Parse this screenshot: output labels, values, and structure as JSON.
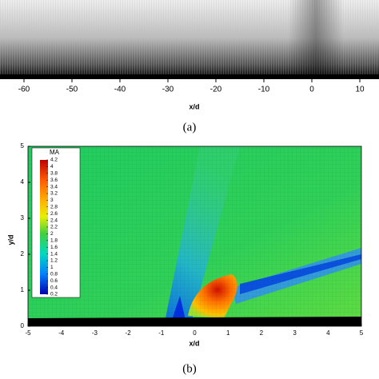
{
  "chart_data": [
    {
      "type": "mesh",
      "caption": "(a)",
      "xlabel": "x/d",
      "xlim": [
        -65,
        14
      ],
      "xticks": [
        -60,
        -50,
        -40,
        -30,
        -20,
        -10,
        0,
        10
      ]
    },
    {
      "type": "contour",
      "caption": "(b)",
      "xlabel": "x/d",
      "ylabel": "y/d",
      "xlim": [
        -5,
        5
      ],
      "xticks": [
        -5,
        -4,
        -3,
        -2,
        -1,
        0,
        1,
        2,
        3,
        4,
        5
      ],
      "ylim": [
        0,
        5
      ],
      "yticks": [
        0,
        1,
        2,
        3,
        4,
        5
      ],
      "colorbar": {
        "title": "MA",
        "lim": [
          0.2,
          4.2
        ],
        "ticks": [
          4.2,
          4,
          3.8,
          3.6,
          3.4,
          3.2,
          3,
          2.8,
          2.6,
          2.4,
          2.2,
          2,
          1.8,
          1.6,
          1.4,
          1.2,
          1,
          0.8,
          0.6,
          0.4,
          0.2
        ]
      }
    }
  ]
}
